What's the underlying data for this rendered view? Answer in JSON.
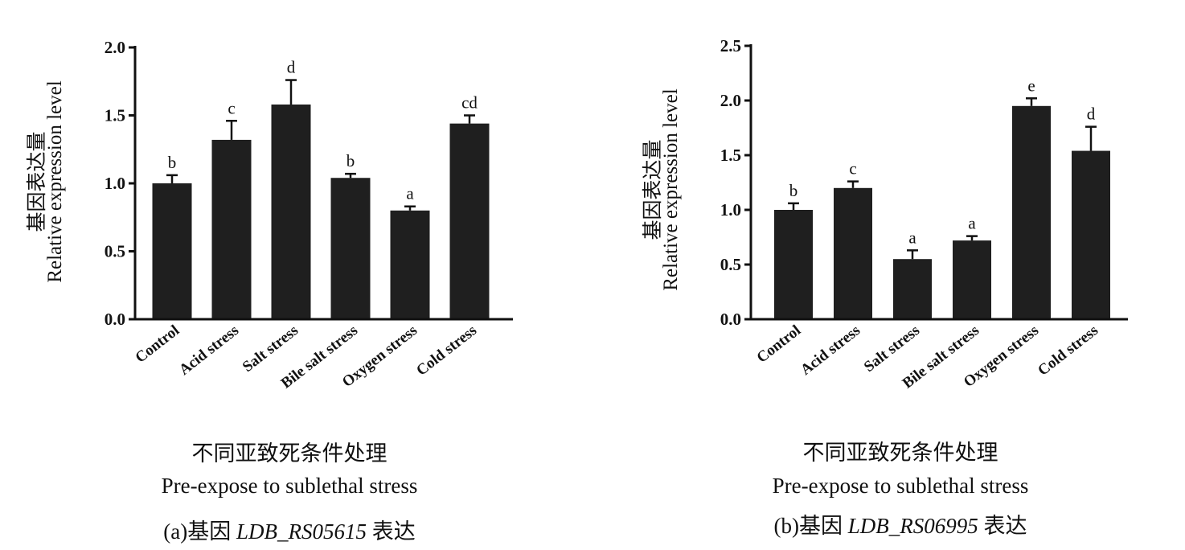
{
  "chart_data": [
    {
      "type": "bar",
      "categories": [
        "Control",
        "Acid stress",
        "Salt stress",
        "Bile salt stress",
        "Oxygen stress",
        "Cold stress"
      ],
      "values": [
        1.0,
        1.32,
        1.58,
        1.04,
        0.8,
        1.44
      ],
      "errors": [
        0.06,
        0.14,
        0.18,
        0.03,
        0.03,
        0.06
      ],
      "significance": [
        "b",
        "c",
        "d",
        "b",
        "a",
        "cd"
      ],
      "ylim": [
        0,
        2.0
      ],
      "yticks": [
        "0.0",
        "0.5",
        "1.0",
        "1.5",
        "2.0"
      ],
      "ylabel_cn": "基因表达量",
      "ylabel_en": "Relative expression level",
      "xlabel_cn": "不同亚致死条件处理",
      "xlabel_en": "Pre-expose to sublethal stress",
      "caption_prefix": "(a)基因",
      "caption_gene": "LDB_RS05615",
      "caption_suffix": "表达",
      "bar_color": "#1f1f1f"
    },
    {
      "type": "bar",
      "categories": [
        "Control",
        "Acid stress",
        "Salt stress",
        "Bile salt stress",
        "Oxygen stress",
        "Cold stress"
      ],
      "values": [
        1.0,
        1.2,
        0.55,
        0.72,
        1.95,
        1.54
      ],
      "errors": [
        0.06,
        0.06,
        0.08,
        0.04,
        0.07,
        0.22
      ],
      "significance": [
        "b",
        "c",
        "a",
        "a",
        "e",
        "d"
      ],
      "ylim": [
        0,
        2.5
      ],
      "yticks": [
        "0.0",
        "0.5",
        "1.0",
        "1.5",
        "2.0",
        "2.5"
      ],
      "ylabel_cn": "基因表达量",
      "ylabel_en": "Relative expression level",
      "xlabel_cn": "不同亚致死条件处理",
      "xlabel_en": "Pre-expose to sublethal stress",
      "caption_prefix": "(b)基因",
      "caption_gene": "LDB_RS06995",
      "caption_suffix": "表达",
      "bar_color": "#1f1f1f"
    }
  ]
}
